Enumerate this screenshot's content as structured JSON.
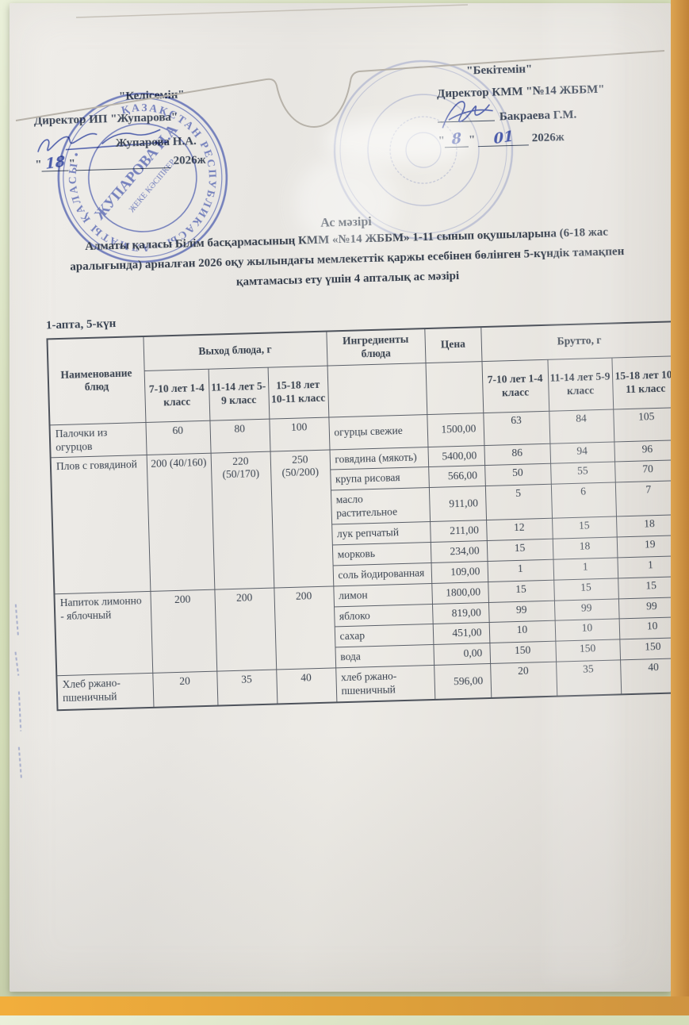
{
  "misc": {
    "quote": "\""
  },
  "approval_left": {
    "word": "\"Келісемін\"",
    "director": "Директор ИП \"Жупарова\"",
    "name": "Жупарова Н.А.",
    "day": "18",
    "year": "2026ж",
    "stamp_ring": "ҚАЗАҚСТАН РЕСПУБЛИКАСЫ • АЛМАТЫ ҚАЛАСЫ •",
    "stamp_name": "ЖУПАРОВА Н.А",
    "stamp_small": "ЖЕКЕ КӘСІПКЕР"
  },
  "approval_right": {
    "word": "\"Бекітемін\"",
    "director": "Директор КММ \"№14 ЖББМ\"",
    "name": "Бакраева Г.М.",
    "day": "8",
    "month": "01",
    "year": "2026ж"
  },
  "title": {
    "heading": "Ас мәзірі",
    "line1": "Алматы қаласы Білім басқармасының КММ «№14 ЖББМ» 1-11 сынып оқушыларына (6-18 жас",
    "line2": "аралығында) арналған 2026 оқу жылындағы мемлекеттік қаржы есебінен бөлінген 5-күндік тамақпен",
    "line3": "қамтамасыз ету  үшін 4 апталық ас мәзірі"
  },
  "week_label": "1-апта, 5-күн",
  "table": {
    "name_header": "Наименование блюд",
    "output_header": "Выход блюда, г",
    "ingredients_header": "Ингредиенты блюда",
    "price_header": "Цена",
    "brutto_header": "Брутто, г",
    "age_columns": [
      "7-10 лет 1-4 класс",
      "11-14 лет 5-9 класс",
      "15-18 лет 10-11 класс"
    ],
    "groups": [
      {
        "dish": "Палочки из огурцов",
        "portions": [
          "60",
          "80",
          "100"
        ],
        "ingredients": [
          {
            "name": "огурцы свежие",
            "price": "1500,00",
            "brutto": [
              "63",
              "84",
              "105"
            ]
          }
        ]
      },
      {
        "dish": "Плов с говядиной",
        "portions": [
          "200 (40/160)",
          "220 (50/170)",
          "250 (50/200)"
        ],
        "ingredients": [
          {
            "name": "говядина (мякоть)",
            "price": "5400,00",
            "brutto": [
              "86",
              "94",
              "96"
            ]
          },
          {
            "name": "крупа рисовая",
            "price": "566,00",
            "brutto": [
              "50",
              "55",
              "70"
            ]
          },
          {
            "name": "масло растительное",
            "price": "911,00",
            "brutto": [
              "5",
              "6",
              "7"
            ]
          },
          {
            "name": "лук репчатый",
            "price": "211,00",
            "brutto": [
              "12",
              "15",
              "18"
            ]
          },
          {
            "name": "морковь",
            "price": "234,00",
            "brutto": [
              "15",
              "18",
              "19"
            ]
          },
          {
            "name": "соль йодированная",
            "price": "109,00",
            "brutto": [
              "1",
              "1",
              "1"
            ]
          }
        ]
      },
      {
        "dish": "Напиток лимонно - яблочный",
        "portions": [
          "200",
          "200",
          "200"
        ],
        "ingredients": [
          {
            "name": "лимон",
            "price": "1800,00",
            "brutto": [
              "15",
              "15",
              "15"
            ]
          },
          {
            "name": "яблоко",
            "price": "819,00",
            "brutto": [
              "99",
              "99",
              "99"
            ]
          },
          {
            "name": "сахар",
            "price": "451,00",
            "brutto": [
              "10",
              "10",
              "10"
            ]
          },
          {
            "name": "вода",
            "price": "0,00",
            "brutto": [
              "150",
              "150",
              "150"
            ]
          }
        ]
      },
      {
        "dish": "Хлеб ржано-пшеничный",
        "portions": [
          "20",
          "35",
          "40"
        ],
        "ingredients": [
          {
            "name": "хлеб ржано-пшеничный",
            "price": "596,00",
            "brutto": [
              "20",
              "35",
              "40"
            ]
          }
        ]
      }
    ]
  }
}
